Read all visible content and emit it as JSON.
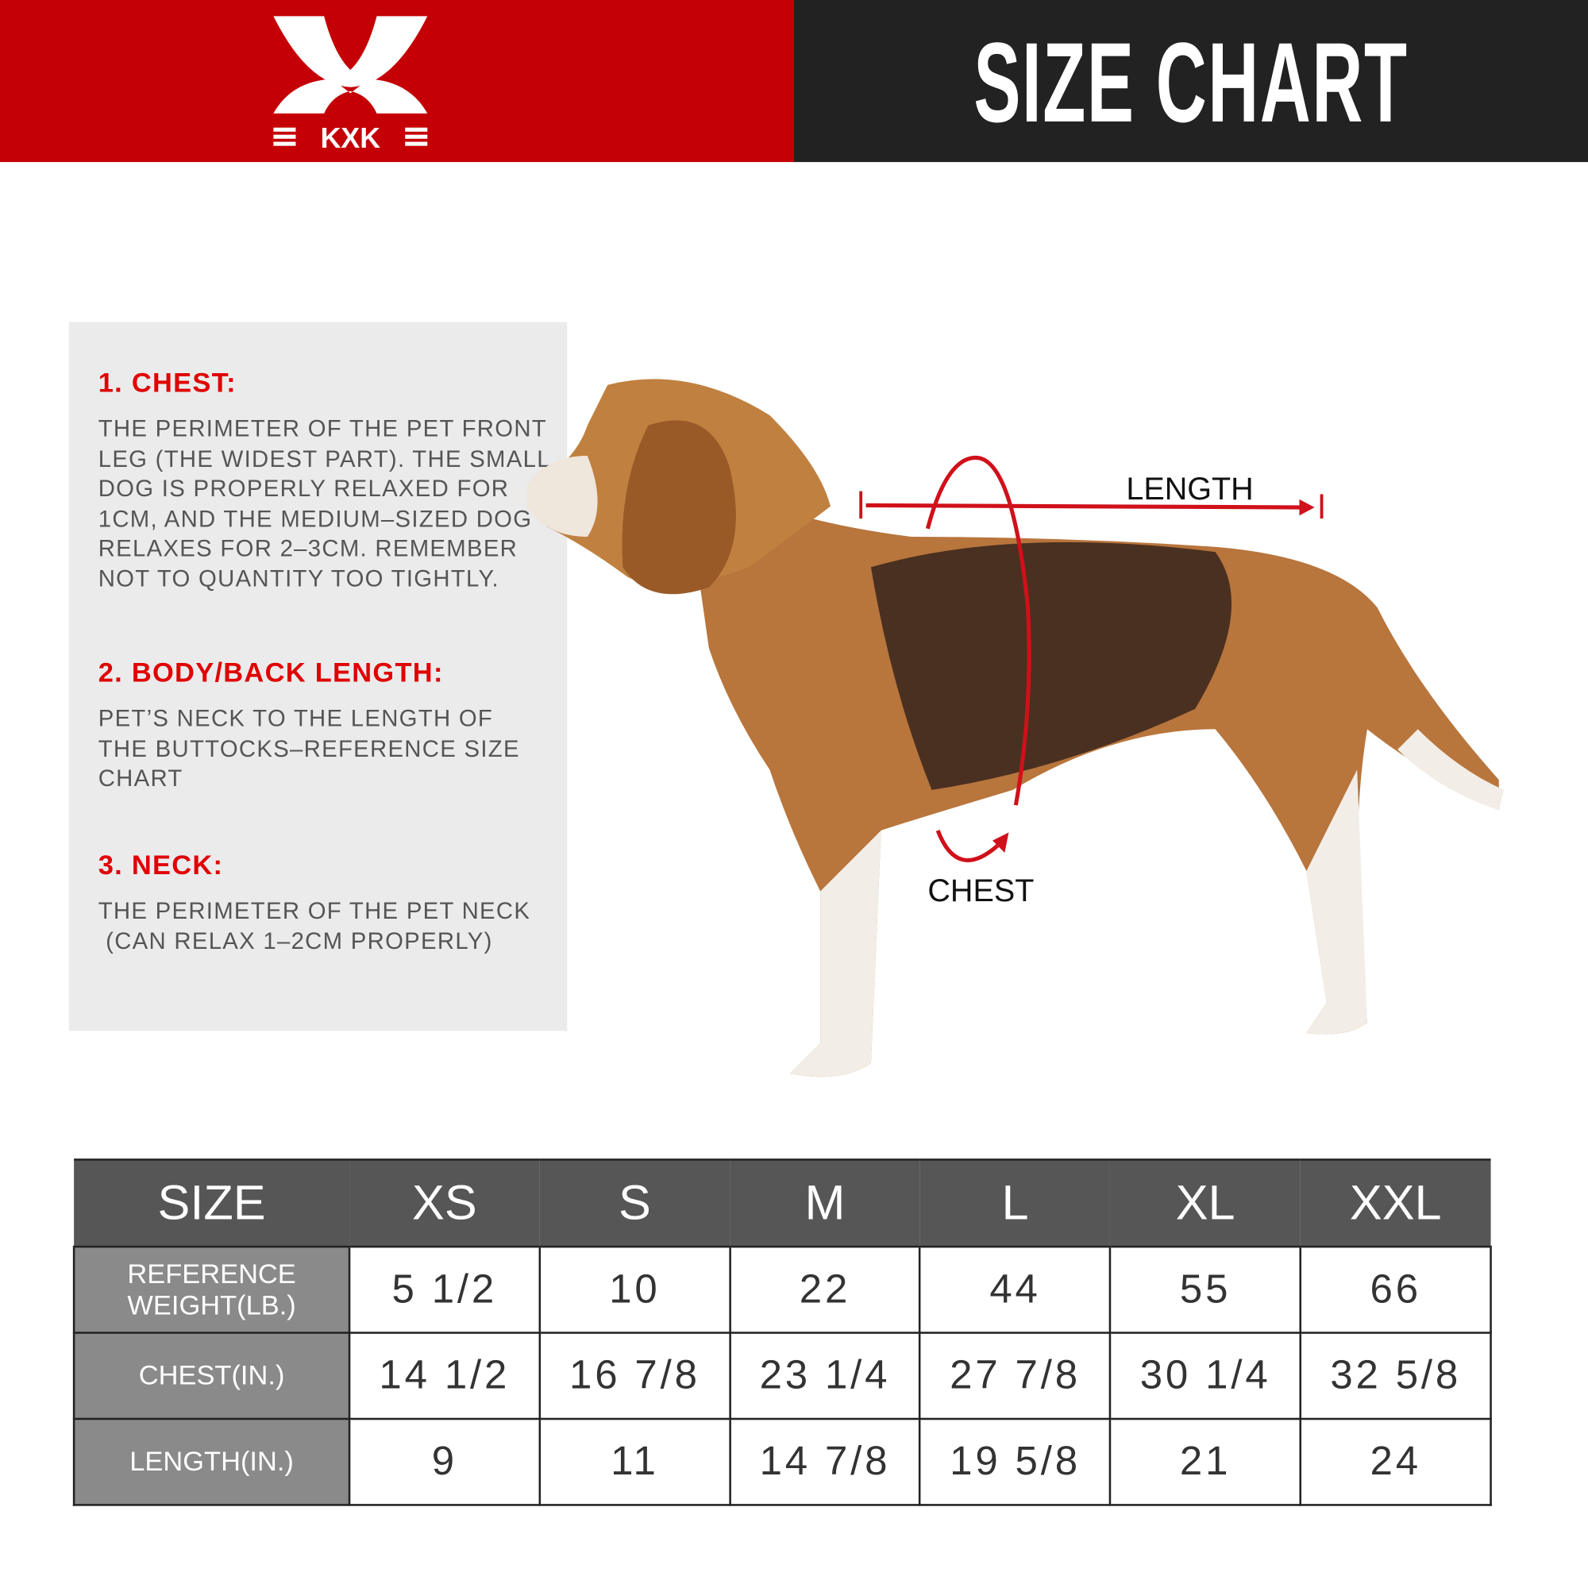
{
  "header": {
    "brand": "KXK",
    "title": "SIZE CHART",
    "colors": {
      "brand_red": "#c40006",
      "dark": "#222222"
    }
  },
  "info": {
    "sections": [
      {
        "heading": "1. CHEST:",
        "body": "THE PERIMETER OF THE PET FRONT\nLEG (THE WIDEST PART). THE SMALL\nDOG IS PROPERLY RELAXED FOR\n1CM, AND THE MEDIUM–SIZED DOG\nRELAXES FOR 2–3CM. REMEMBER\nNOT TO QUANTITY TOO TIGHTLY."
      },
      {
        "heading": "2. BODY/BACK LENGTH:",
        "body": "PET’S NECK TO THE LENGTH OF\nTHE BUTTOCKS–REFERENCE SIZE\nCHART"
      },
      {
        "heading": "3. NECK:",
        "body": "THE PERIMETER OF THE PET NECK\n (CAN RELAX 1–2CM PROPERLY)"
      }
    ]
  },
  "diagram": {
    "length_label": "LENGTH",
    "chest_label": "CHEST"
  },
  "table": {
    "headers": [
      "SIZE",
      "XS",
      "S",
      "M",
      "L",
      "XL",
      "XXL"
    ],
    "rows": [
      {
        "label": "REFERENCE WEIGHT(LB.)",
        "values": [
          "5 1/2",
          "10",
          "22",
          "44",
          "55",
          "66"
        ]
      },
      {
        "label": "CHEST(IN.)",
        "values": [
          "14 1/2",
          "16 7/8",
          "23 1/4",
          "27 7/8",
          "30 1/4",
          "32 5/8"
        ]
      },
      {
        "label": "LENGTH(IN.)",
        "values": [
          "9",
          "11",
          "14 7/8",
          "19 5/8",
          "21",
          "24"
        ]
      }
    ]
  }
}
